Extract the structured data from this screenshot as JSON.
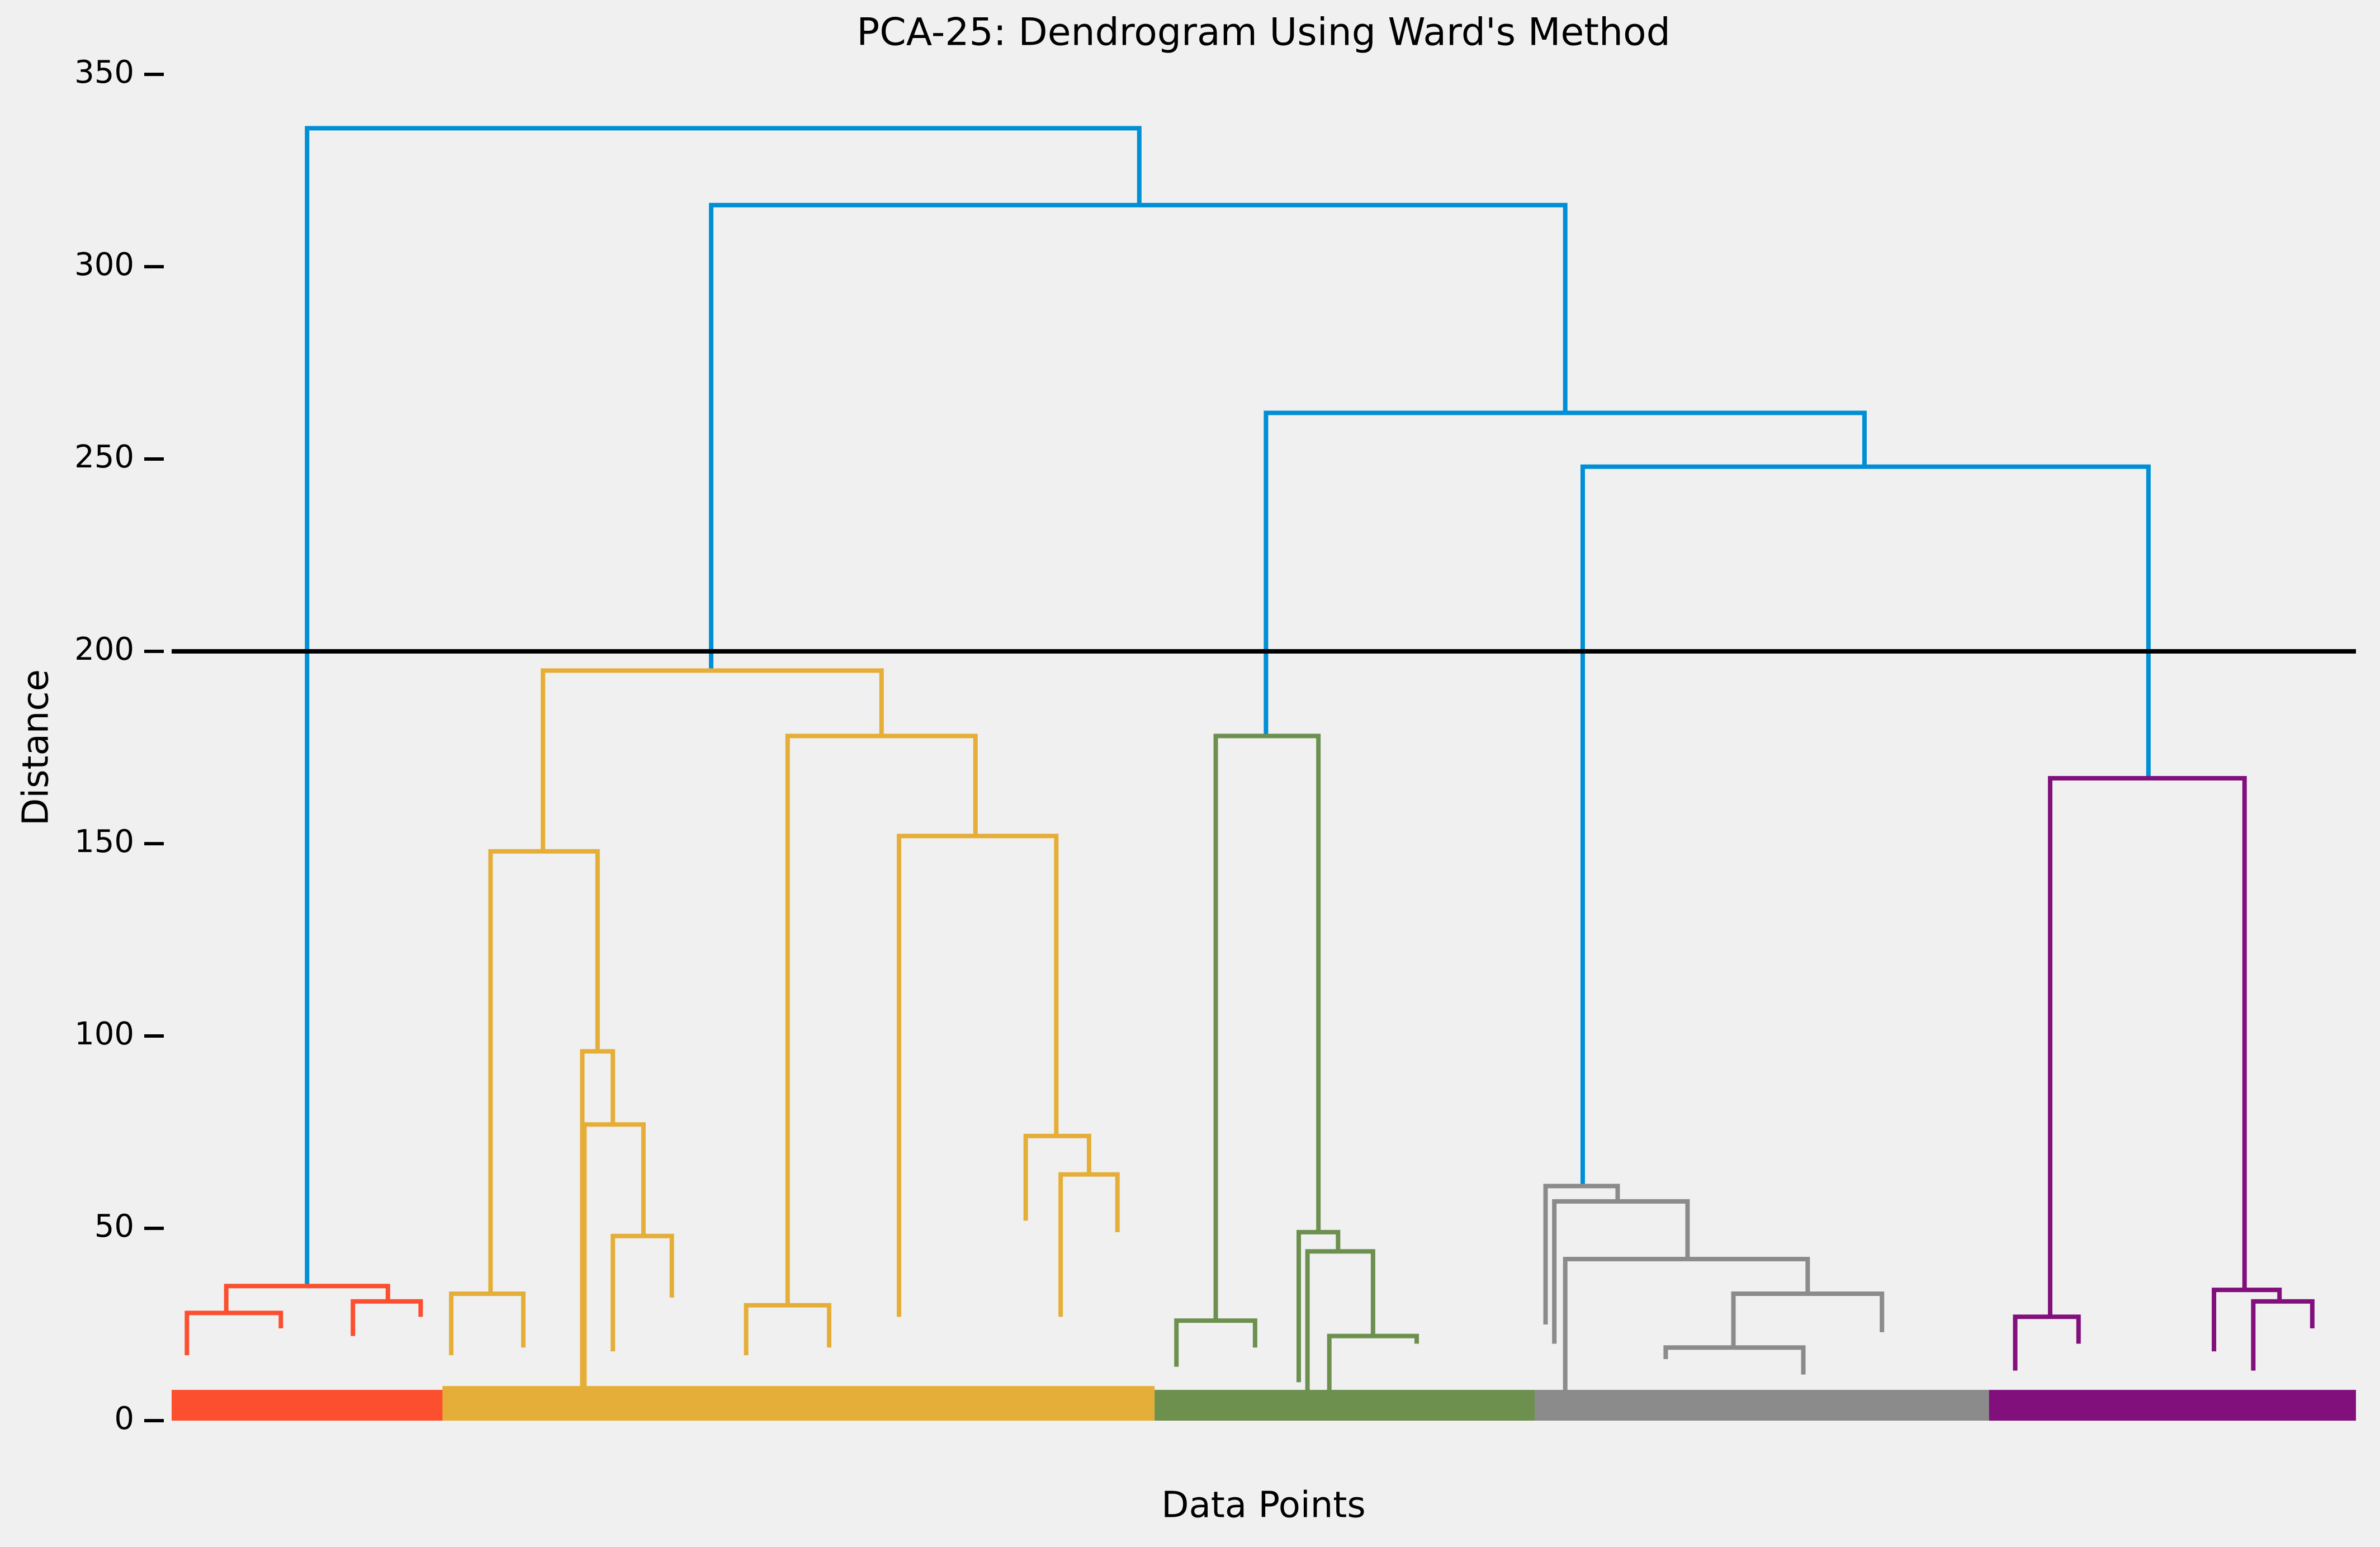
{
  "chart_data": {
    "type": "dendrogram",
    "title": "PCA-25: Dendrogram Using Ward's Method",
    "xlabel": "Data Points",
    "ylabel": "Distance",
    "xlim": [
      0,
      1000
    ],
    "ylim": [
      0,
      350
    ],
    "yticks": [
      0,
      50,
      100,
      150,
      200,
      250,
      300,
      350
    ],
    "hline": 200,
    "hline_color": "#000000",
    "clusters": [
      {
        "color": "#fc4f30",
        "x": [
          0,
          124
        ],
        "height": 8
      },
      {
        "color": "#e5ae38",
        "x": [
          124,
          450
        ],
        "height": 9
      },
      {
        "color": "#6d904f",
        "x": [
          450,
          624
        ],
        "height": 8
      },
      {
        "color": "#8b8b8b",
        "x": [
          624,
          832
        ],
        "height": 8
      },
      {
        "color": "#810f7c",
        "x": [
          832,
          1000
        ],
        "height": 8
      }
    ],
    "links": [
      {
        "color": "#008fd5",
        "icoord": [
          62,
          62,
          443,
          443
        ],
        "dcoord": [
          35,
          336,
          336,
          316
        ]
      },
      {
        "color": "#008fd5",
        "icoord": [
          247,
          247,
          638,
          638
        ],
        "dcoord": [
          195,
          316,
          316,
          262
        ]
      },
      {
        "color": "#008fd5",
        "icoord": [
          501,
          501,
          775,
          775
        ],
        "dcoord": [
          178,
          262,
          262,
          248
        ]
      },
      {
        "color": "#008fd5",
        "icoord": [
          646,
          646,
          905,
          905
        ],
        "dcoord": [
          61,
          248,
          248,
          167
        ]
      },
      {
        "color": "#fc4f30",
        "icoord": [
          25,
          25,
          99,
          99
        ],
        "dcoord": [
          28,
          35,
          35,
          31
        ]
      },
      {
        "color": "#fc4f30",
        "icoord": [
          7,
          7,
          50,
          50
        ],
        "dcoord": [
          17,
          28,
          28,
          24
        ]
      },
      {
        "color": "#fc4f30",
        "icoord": [
          83,
          83,
          114,
          114
        ],
        "dcoord": [
          22,
          31,
          31,
          27
        ]
      },
      {
        "color": "#e5ae38",
        "icoord": [
          170,
          170,
          325,
          325
        ],
        "dcoord": [
          148,
          195,
          195,
          178
        ]
      },
      {
        "color": "#e5ae38",
        "icoord": [
          146,
          146,
          195,
          195
        ],
        "dcoord": [
          33,
          148,
          148,
          96
        ]
      },
      {
        "color": "#e5ae38",
        "icoord": [
          128,
          128,
          161,
          161
        ],
        "dcoord": [
          17,
          33,
          33,
          19
        ]
      },
      {
        "color": "#e5ae38",
        "icoord": [
          188,
          188,
          202,
          202
        ],
        "dcoord": [
          5,
          96,
          96,
          77
        ]
      },
      {
        "color": "#e5ae38",
        "icoord": [
          189,
          189,
          216,
          216
        ],
        "dcoord": [
          5,
          77,
          77,
          48
        ]
      },
      {
        "color": "#e5ae38",
        "icoord": [
          202,
          202,
          229,
          229
        ],
        "dcoord": [
          18,
          48,
          48,
          32
        ]
      },
      {
        "color": "#e5ae38",
        "icoord": [
          282,
          282,
          368,
          368
        ],
        "dcoord": [
          30,
          178,
          178,
          152
        ]
      },
      {
        "color": "#e5ae38",
        "icoord": [
          263,
          263,
          301,
          301
        ],
        "dcoord": [
          17,
          30,
          30,
          19
        ]
      },
      {
        "color": "#e5ae38",
        "icoord": [
          333,
          333,
          405,
          405
        ],
        "dcoord": [
          27,
          152,
          152,
          74
        ]
      },
      {
        "color": "#e5ae38",
        "icoord": [
          391,
          391,
          420,
          420
        ],
        "dcoord": [
          52,
          74,
          74,
          64
        ]
      },
      {
        "color": "#e5ae38",
        "icoord": [
          407,
          407,
          433,
          433
        ],
        "dcoord": [
          27,
          64,
          64,
          49
        ]
      },
      {
        "color": "#6d904f",
        "icoord": [
          478,
          478,
          525,
          525
        ],
        "dcoord": [
          26,
          178,
          178,
          49
        ]
      },
      {
        "color": "#6d904f",
        "icoord": [
          460,
          460,
          496,
          496
        ],
        "dcoord": [
          14,
          26,
          26,
          19
        ]
      },
      {
        "color": "#6d904f",
        "icoord": [
          516,
          516,
          534,
          534
        ],
        "dcoord": [
          10,
          49,
          49,
          44
        ]
      },
      {
        "color": "#6d904f",
        "icoord": [
          520,
          520,
          550,
          550
        ],
        "dcoord": [
          8,
          44,
          44,
          22
        ]
      },
      {
        "color": "#6d904f",
        "icoord": [
          530,
          530,
          570,
          570
        ],
        "dcoord": [
          8,
          22,
          22,
          20
        ]
      },
      {
        "color": "#8b8b8b",
        "icoord": [
          629,
          629,
          662,
          662
        ],
        "dcoord": [
          25,
          61,
          61,
          57
        ]
      },
      {
        "color": "#8b8b8b",
        "icoord": [
          633,
          633,
          694,
          694
        ],
        "dcoord": [
          20,
          57,
          57,
          42
        ]
      },
      {
        "color": "#8b8b8b",
        "icoord": [
          638,
          638,
          749,
          749
        ],
        "dcoord": [
          8,
          42,
          42,
          33
        ]
      },
      {
        "color": "#8b8b8b",
        "icoord": [
          715,
          715,
          783,
          783
        ],
        "dcoord": [
          19,
          33,
          33,
          23
        ]
      },
      {
        "color": "#8b8b8b",
        "icoord": [
          684,
          684,
          747,
          747
        ],
        "dcoord": [
          16,
          19,
          19,
          12
        ]
      },
      {
        "color": "#810f7c",
        "icoord": [
          860,
          860,
          949,
          949
        ],
        "dcoord": [
          27,
          167,
          167,
          34
        ]
      },
      {
        "color": "#810f7c",
        "icoord": [
          844,
          844,
          873,
          873
        ],
        "dcoord": [
          13,
          27,
          27,
          20
        ]
      },
      {
        "color": "#810f7c",
        "icoord": [
          935,
          935,
          965,
          965
        ],
        "dcoord": [
          18,
          34,
          34,
          31
        ]
      },
      {
        "color": "#810f7c",
        "icoord": [
          953,
          953,
          980,
          980
        ],
        "dcoord": [
          13,
          31,
          31,
          24
        ]
      }
    ]
  }
}
